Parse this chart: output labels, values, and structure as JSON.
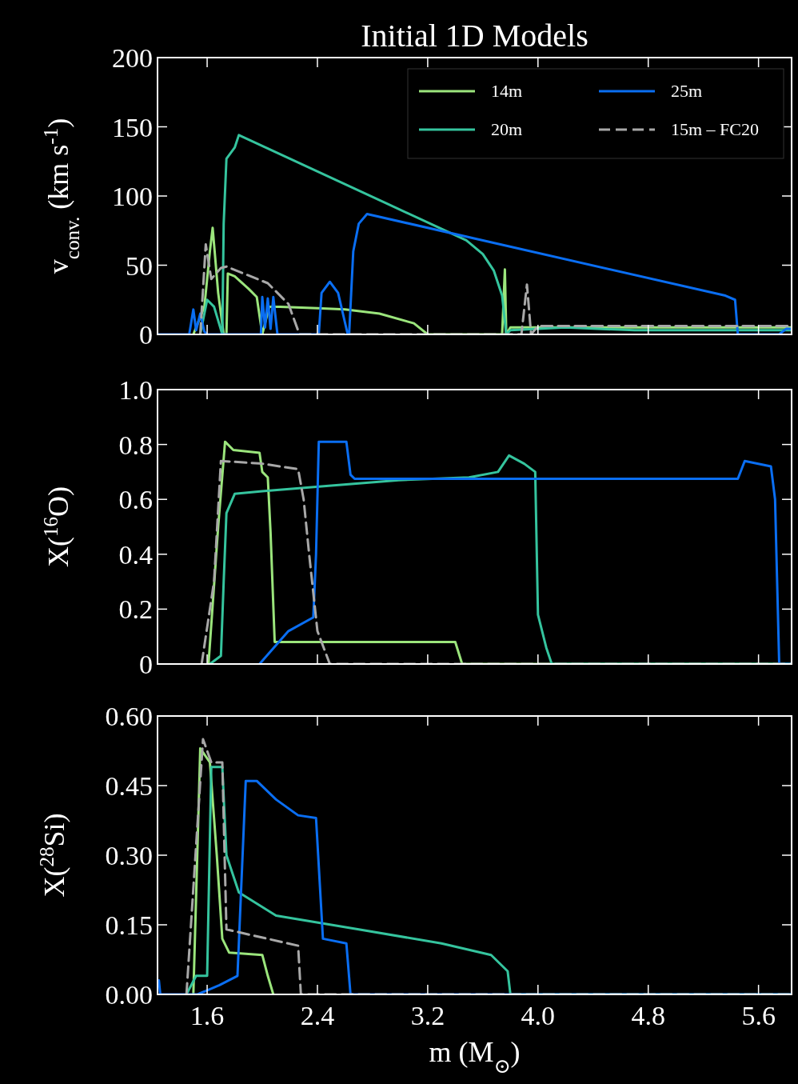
{
  "chart_data": [
    {
      "type": "line",
      "title": "Initial 1D Models",
      "ylabel": "v$_{conv.}$ (km s$^{-1}$)",
      "xlim": [
        1.24,
        5.84
      ],
      "xticks": [
        1.6,
        2.4,
        3.2,
        4.0,
        4.8,
        5.6
      ],
      "ylim": [
        0,
        200
      ],
      "yticks": [
        0,
        50,
        100,
        150,
        200
      ],
      "tick_labels": "y",
      "legend": "top right",
      "series": [
        {
          "name": "14m",
          "color": "#9be57c",
          "line_style": "solid",
          "x": [
            1.5,
            1.58,
            1.62,
            1.64,
            1.68,
            1.72,
            1.74,
            1.75,
            1.8,
            1.9,
            1.96,
            2.0,
            2.05,
            2.13,
            2.4,
            2.6,
            2.85,
            3.1,
            3.2,
            3.74,
            3.76,
            3.77,
            3.8,
            5.84
          ],
          "values": [
            0,
            20,
            60,
            77,
            30,
            0,
            0,
            44,
            42,
            33,
            27,
            0,
            20,
            20,
            19,
            18,
            15,
            8,
            0,
            0,
            47,
            0,
            5,
            5
          ]
        },
        {
          "name": "20m",
          "color": "#35c49e",
          "line_style": "solid",
          "x": [
            1.55,
            1.6,
            1.65,
            1.71,
            1.72,
            1.74,
            1.8,
            1.83,
            3.48,
            3.6,
            3.68,
            3.74,
            3.77,
            3.8,
            4.2,
            4.7,
            5.84
          ],
          "values": [
            0,
            25,
            20,
            0,
            80,
            127,
            135,
            144,
            68,
            58,
            46,
            28,
            0,
            3,
            5,
            3,
            3
          ]
        },
        {
          "name": "25m",
          "color": "#0a6ef2",
          "line_style": "solid",
          "x": [
            1.24,
            1.47,
            1.5,
            1.52,
            1.55,
            1.58,
            1.6,
            1.99,
            2.0,
            2.02,
            2.04,
            2.06,
            2.08,
            2.11,
            2.41,
            2.43,
            2.49,
            2.55,
            2.62,
            2.63,
            2.66,
            2.7,
            2.76,
            5.36,
            5.43,
            5.45,
            5.75,
            5.8,
            5.84
          ],
          "values": [
            0,
            0,
            18,
            3,
            15,
            2,
            0,
            0,
            27,
            5,
            26,
            4,
            27,
            0,
            0,
            30,
            38,
            30,
            0,
            0,
            60,
            80,
            87,
            28,
            25,
            0,
            0,
            4,
            4
          ]
        },
        {
          "name": "15m – FC20",
          "color": "#a8a8a8",
          "line_style": "dashed",
          "x": [
            1.55,
            1.59,
            1.63,
            1.7,
            1.74,
            2.04,
            2.19,
            2.27,
            3.88,
            3.92,
            3.95,
            4.0,
            5.84
          ],
          "values": [
            0,
            65,
            40,
            48,
            49,
            37,
            22,
            0,
            0,
            36,
            0,
            6,
            6
          ]
        }
      ]
    },
    {
      "type": "line",
      "ylabel": "X($^{16}$O)",
      "xlim": [
        1.24,
        5.84
      ],
      "xticks": [
        1.6,
        2.4,
        3.2,
        4.0,
        4.8,
        5.6
      ],
      "ylim": [
        0,
        1
      ],
      "yticks": [
        0.0,
        {
          "value": 0.2,
          "label": "0.2"
        },
        {
          "value": 0.4,
          "label": "0.4"
        },
        {
          "value": 0.6,
          "label": "0.6"
        },
        {
          "value": 0.8,
          "label": "0.8"
        },
        {
          "value": 1,
          "label": "1.0"
        }
      ],
      "tick_labels": "y",
      "series": [
        {
          "color": "#9be57c",
          "line_style": "solid",
          "x": [
            1.61,
            1.68,
            1.73,
            1.79,
            1.98,
            2.0,
            2.04,
            2.06,
            2.09,
            3.4,
            3.45,
            5.84
          ],
          "values": [
            0,
            0.5,
            0.81,
            0.78,
            0.77,
            0.7,
            0.68,
            0.48,
            0.08,
            0.08,
            0,
            0
          ]
        },
        {
          "color": "#35c49e",
          "line_style": "solid",
          "x": [
            1.62,
            1.7,
            1.72,
            1.74,
            1.8,
            2.0,
            2.5,
            2.99,
            3.5,
            3.71,
            3.79,
            3.9,
            3.98,
            4.0,
            4.06,
            4.1,
            5.84
          ],
          "values": [
            0,
            0.03,
            0.3,
            0.55,
            0.62,
            0.63,
            0.65,
            0.67,
            0.68,
            0.7,
            0.76,
            0.73,
            0.7,
            0.18,
            0.06,
            0,
            0
          ]
        },
        {
          "color": "#0a6ef2",
          "line_style": "solid",
          "x": [
            1.98,
            2.19,
            2.37,
            2.39,
            2.41,
            2.61,
            2.64,
            2.67,
            5.45,
            5.5,
            5.69,
            5.72,
            5.75,
            5.84
          ],
          "values": [
            0,
            0.12,
            0.17,
            0.4,
            0.81,
            0.81,
            0.69,
            0.675,
            0.675,
            0.74,
            0.72,
            0.6,
            0,
            0
          ]
        },
        {
          "color": "#a8a8a8",
          "line_style": "dashed",
          "x": [
            1.56,
            1.65,
            1.7,
            2.0,
            2.26,
            2.3,
            2.34,
            2.4,
            2.49,
            5.84
          ],
          "values": [
            0,
            0.3,
            0.74,
            0.73,
            0.71,
            0.6,
            0.4,
            0.12,
            0,
            0
          ]
        }
      ]
    },
    {
      "type": "line",
      "ylabel": "X($^{28}$Si)",
      "xlabel": "m (M$_{⊙}$)",
      "xlim": [
        1.24,
        5.84
      ],
      "xticks": [
        1.6,
        2.4,
        3.2,
        {
          "value": 4.0,
          "label": "4.0"
        },
        4.8,
        5.6
      ],
      "ylim": [
        0,
        0.6
      ],
      "yticks": [
        {
          "value": 0,
          "label": "0.00"
        },
        {
          "value": 0.15,
          "label": "0.15"
        },
        {
          "value": 0.3,
          "label": "0.30"
        },
        {
          "value": 0.45,
          "label": "0.45"
        },
        {
          "value": 0.6,
          "label": "0.60"
        }
      ],
      "series": [
        {
          "color": "#9be57c",
          "line_style": "solid",
          "x": [
            1.5,
            1.55,
            1.62,
            1.67,
            1.71,
            1.76,
            2.0,
            2.04,
            2.08
          ],
          "values": [
            0,
            0.53,
            0.5,
            0.3,
            0.12,
            0.09,
            0.085,
            0.04,
            0
          ]
        },
        {
          "color": "#35c49e",
          "line_style": "solid",
          "x": [
            1.45,
            1.52,
            1.6,
            1.63,
            1.71,
            1.74,
            1.83,
            2.1,
            2.7,
            3.3,
            3.66,
            3.78,
            3.8,
            5.84
          ],
          "values": [
            0,
            0.04,
            0.04,
            0.49,
            0.49,
            0.3,
            0.22,
            0.17,
            0.14,
            0.11,
            0.085,
            0.05,
            0,
            0
          ]
        },
        {
          "color": "#0a6ef2",
          "line_style": "solid",
          "x": [
            1.24,
            1.25,
            1.26,
            1.53,
            1.69,
            1.82,
            1.88,
            1.96,
            2.1,
            2.26,
            2.39,
            2.44,
            2.61,
            2.64,
            5.84
          ],
          "values": [
            0.03,
            0.03,
            0,
            0,
            0.02,
            0.04,
            0.46,
            0.46,
            0.42,
            0.386,
            0.38,
            0.12,
            0.11,
            0,
            0
          ]
        },
        {
          "color": "#a8a8a8",
          "line_style": "dashed",
          "x": [
            1.45,
            1.57,
            1.63,
            1.71,
            1.74,
            2.26,
            2.28,
            5.84
          ],
          "values": [
            0,
            0.55,
            0.5,
            0.5,
            0.14,
            0.105,
            0,
            0
          ]
        }
      ]
    }
  ]
}
